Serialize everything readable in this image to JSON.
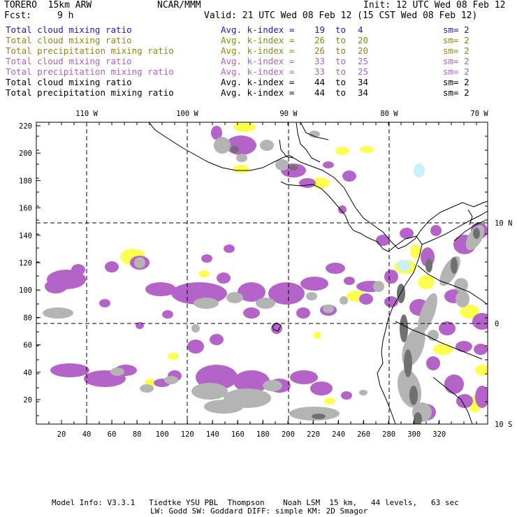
{
  "header": {
    "model": "TORERO  15km ARW",
    "center": "NCAR/MMM",
    "init": "Init: 12 UTC Wed 08 Feb 12",
    "fcst_label": "Fcst:",
    "fcst_value": "9 h",
    "valid": "Valid: 21 UTC Wed 08 Feb 12 (15 CST Wed 08 Feb 12)"
  },
  "legend": [
    {
      "field": "Total cloud mixing ratio",
      "avg": "Avg. k-index =",
      "from": "19",
      "to_word": "to",
      "to": "4",
      "sm": "sm= 2",
      "color": "#1a1ad0"
    },
    {
      "field": "Total cloud mixing ratio",
      "avg": "Avg. k-index =",
      "from": "26",
      "to_word": "to",
      "to": "20",
      "sm": "sm= 2",
      "color": "#8a8a10"
    },
    {
      "field": "Total precipitation mixing ratio",
      "avg": "Avg. k-index =",
      "from": "26",
      "to_word": "to",
      "to": "20",
      "sm": "sm= 2",
      "color": "#8a8a10"
    },
    {
      "field": "Total cloud mixing ratio",
      "avg": "Avg. k-index =",
      "from": "33",
      "to_word": "to",
      "to": "25",
      "sm": "sm= 2",
      "color": "#b060c8"
    },
    {
      "field": "Total precipitation mixing ratio",
      "avg": "Avg. k-index =",
      "from": "33",
      "to_word": "to",
      "to": "25",
      "sm": "sm= 2",
      "color": "#b060c8"
    },
    {
      "field": "Total cloud mixing ratio",
      "avg": "Avg. k-index =",
      "from": "44",
      "to_word": "to",
      "to": "34",
      "sm": "sm= 2",
      "color": "#000000"
    },
    {
      "field": "Total precipitation mixing ratio",
      "avg": "Avg. k-index =",
      "from": "44",
      "to_word": "to",
      "to": "34",
      "sm": "sm= 2",
      "color": "#000000"
    }
  ],
  "map": {
    "lon_labels": [
      "110 W",
      "100 W",
      "90 W",
      "80 W",
      "70 W"
    ],
    "lat_labels": [
      "10 N",
      "0",
      "10 S"
    ],
    "x_ticks": [
      "20",
      "40",
      "60",
      "80",
      "100",
      "120",
      "140",
      "160",
      "180",
      "200",
      "220",
      "240",
      "260",
      "280",
      "300",
      "320"
    ],
    "y_ticks": [
      "220",
      "200",
      "180",
      "160",
      "140",
      "120",
      "100",
      "80",
      "60",
      "40",
      "20"
    ],
    "colors": {
      "gray": "#b4b4b4",
      "dark_gray": "#707070",
      "purple": "#b464c8",
      "yellow": "#ffff50",
      "light_blue": "#c8f0ff"
    }
  },
  "footer": {
    "line1": "Model Info: V3.3.1   Tiedtke YSU PBL  Thompson    Noah LSM  15 km,   44 levels,   63 sec",
    "line2": "LW: Godd SW: Goddard DIFF: simple KM: 2D Smagor"
  }
}
